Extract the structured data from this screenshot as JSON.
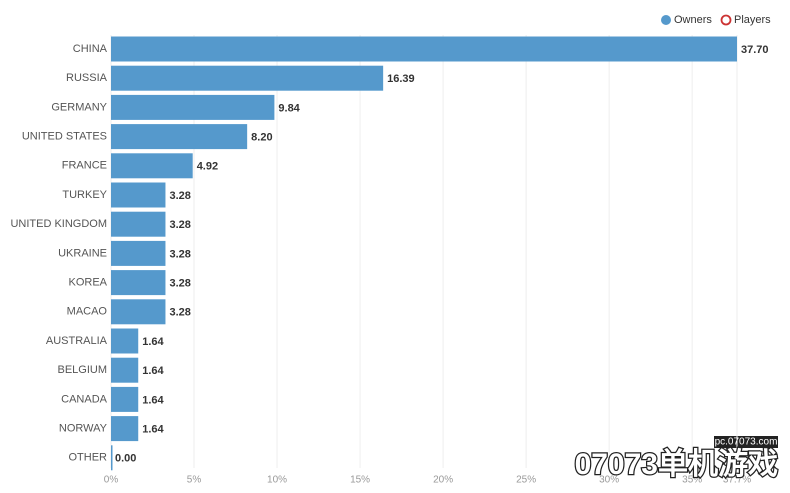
{
  "chart_data": {
    "type": "hbar",
    "categories": [
      "CHINA",
      "RUSSIA",
      "GERMANY",
      "UNITED STATES",
      "FRANCE",
      "TURKEY",
      "UNITED KINGDOM",
      "UKRAINE",
      "KOREA",
      "MACAO",
      "AUSTRALIA",
      "BELGIUM",
      "CANADA",
      "NORWAY",
      "OTHER"
    ],
    "series": [
      {
        "name": "Owners",
        "color": "#5599cc",
        "values": [
          37.7,
          16.39,
          9.84,
          8.2,
          4.92,
          3.28,
          3.28,
          3.28,
          3.28,
          3.28,
          1.64,
          1.64,
          1.64,
          1.64,
          0
        ],
        "value_labels": [
          "37.70",
          "16.39",
          "9.84",
          "8.20",
          "4.92",
          "3.28",
          "3.28",
          "3.28",
          "3.28",
          "3.28",
          "1.64",
          "1.64",
          "1.64",
          "1.64",
          "0.00"
        ]
      }
    ],
    "extra_legend": [
      {
        "name": "Players",
        "color": "#cc3333"
      }
    ],
    "xlim": [
      0,
      37.7
    ],
    "xticks": [
      {
        "value": 0,
        "label": "0%"
      },
      {
        "value": 5,
        "label": "5%"
      },
      {
        "value": 10,
        "label": "10%"
      },
      {
        "value": 15,
        "label": "15%"
      },
      {
        "value": 20,
        "label": "20%"
      },
      {
        "value": 25,
        "label": "25%"
      },
      {
        "value": 30,
        "label": "30%"
      },
      {
        "value": 35,
        "label": "35%"
      },
      {
        "value": 37.7,
        "label": "37.7%"
      }
    ],
    "grid": true
  },
  "watermark": {
    "site": "pc.07073.com",
    "brand": "07073单机游戏"
  }
}
